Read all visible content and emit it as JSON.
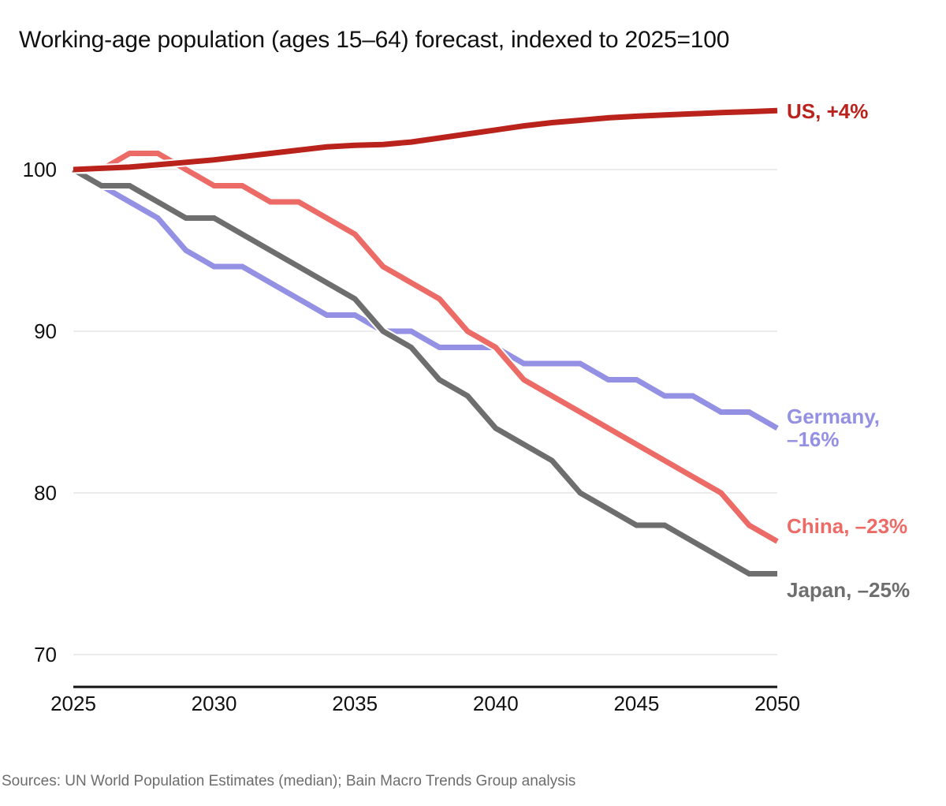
{
  "title": "Working-age population (ages 15–64) forecast, indexed to 2025=100",
  "source": "Sources: UN World Population Estimates (median); Bain Macro Trends Group analysis",
  "chart_data": {
    "type": "line",
    "title": "Working-age population (ages 15–64) forecast, indexed to 2025=100",
    "xlabel": "",
    "ylabel": "",
    "xlim": [
      2025,
      2050
    ],
    "ylim": [
      68,
      105
    ],
    "x_ticks": [
      "2025",
      "2030",
      "2035",
      "2040",
      "2045",
      "2050"
    ],
    "y_ticks": [
      "70",
      "80",
      "90",
      "100"
    ],
    "grid": "horizontal",
    "legend": "direct labels at line ends (right)",
    "x": [
      2025,
      2026,
      2027,
      2028,
      2029,
      2030,
      2031,
      2032,
      2033,
      2034,
      2035,
      2036,
      2037,
      2038,
      2039,
      2040,
      2041,
      2042,
      2043,
      2044,
      2045,
      2046,
      2047,
      2048,
      2049,
      2050
    ],
    "series": [
      {
        "name": "US",
        "label_lines": [
          "US, +4%"
        ],
        "color": "#b9231b",
        "values": [
          100,
          100.08,
          100.15,
          100.3,
          100.45,
          100.6,
          100.8,
          101.0,
          101.2,
          101.4,
          101.5,
          101.55,
          101.7,
          101.95,
          102.2,
          102.45,
          102.7,
          102.9,
          103.05,
          103.2,
          103.3,
          103.38,
          103.45,
          103.52,
          103.58,
          103.65
        ]
      },
      {
        "name": "Germany",
        "label_lines": [
          "Germany,",
          "–16%"
        ],
        "color": "#9490e4",
        "values": [
          100,
          99,
          98,
          97,
          95,
          94,
          94,
          93,
          92,
          91,
          91,
          90,
          90,
          89,
          89,
          89,
          88,
          88,
          88,
          87,
          87,
          86,
          86,
          85,
          85,
          84
        ]
      },
      {
        "name": "China",
        "label_lines": [
          "China, –23%"
        ],
        "color": "#ec6b66",
        "values": [
          100,
          100,
          101,
          101,
          100,
          99,
          99,
          98,
          98,
          97,
          96,
          94,
          93,
          92,
          90,
          89,
          87,
          86,
          85,
          84,
          83,
          82,
          81,
          80,
          78,
          77
        ]
      },
      {
        "name": "Japan",
        "label_lines": [
          "Japan, –25%"
        ],
        "color": "#6e6e6e",
        "values": [
          100,
          99,
          99,
          98,
          97,
          97,
          96,
          95,
          94,
          93,
          92,
          90,
          89,
          87,
          86,
          84,
          83,
          82,
          80,
          79,
          78,
          78,
          77,
          76,
          75,
          75
        ]
      }
    ]
  }
}
